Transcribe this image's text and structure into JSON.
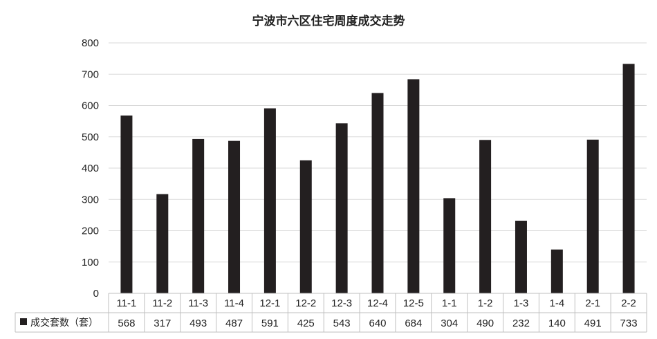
{
  "chart_data": {
    "type": "bar",
    "title": "宁波市六区住宅周度成交走势",
    "categories": [
      "11-1",
      "11-2",
      "11-3",
      "11-4",
      "12-1",
      "12-2",
      "12-3",
      "12-4",
      "12-5",
      "1-1",
      "1-2",
      "1-3",
      "1-4",
      "2-1",
      "2-2"
    ],
    "series": [
      {
        "name": "成交套数（套）",
        "values": [
          568,
          317,
          493,
          487,
          591,
          425,
          543,
          640,
          684,
          304,
          490,
          232,
          140,
          491,
          733
        ],
        "color": "#231f20"
      }
    ],
    "ylim": [
      0,
      800
    ],
    "yticks": [
      0,
      100,
      200,
      300,
      400,
      500,
      600,
      700,
      800
    ],
    "grid": true,
    "legend": "data-table"
  }
}
